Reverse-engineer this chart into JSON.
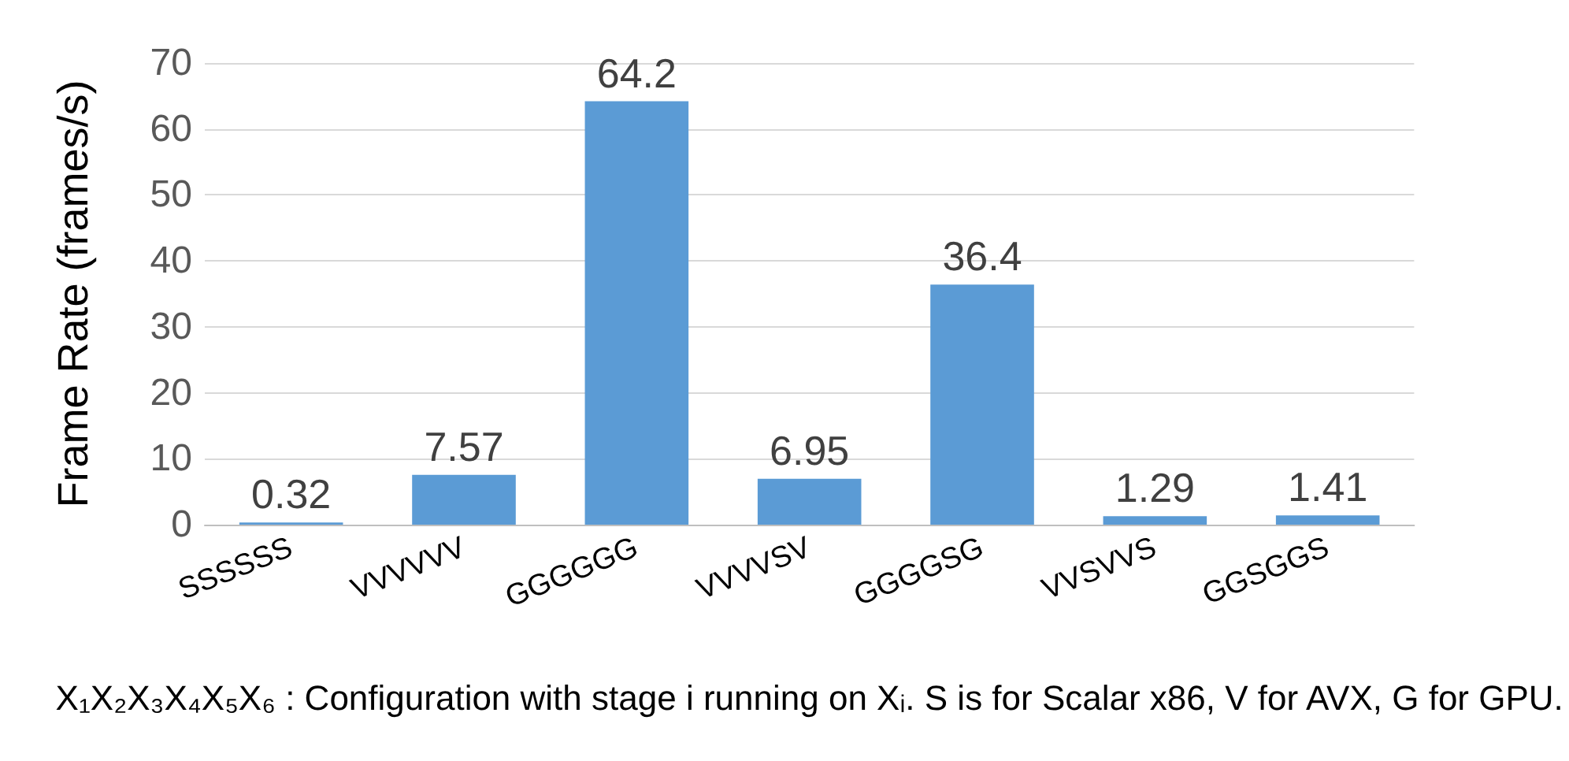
{
  "chart_data": {
    "type": "bar",
    "ylabel": "Frame Rate (frames/s)",
    "xlabel": "X₁X₂X₃X₄X₅X₆ : Configuration with stage i running on Xᵢ. S is for Scalar x86, V for AVX, G for GPU.",
    "categories": [
      "SSSSSS",
      "VVVVVV",
      "GGGGGG",
      "VVVVSV",
      "GGGGSG",
      "VVSVVS",
      "GGSGGS"
    ],
    "values": [
      0.32,
      7.57,
      64.2,
      6.95,
      36.4,
      1.29,
      1.41
    ],
    "color": "#5b9bd5",
    "ylim": [
      0,
      70
    ],
    "yticks": [
      0,
      10,
      20,
      30,
      40,
      50,
      60,
      70
    ],
    "grid": "y",
    "data_labels": true
  }
}
